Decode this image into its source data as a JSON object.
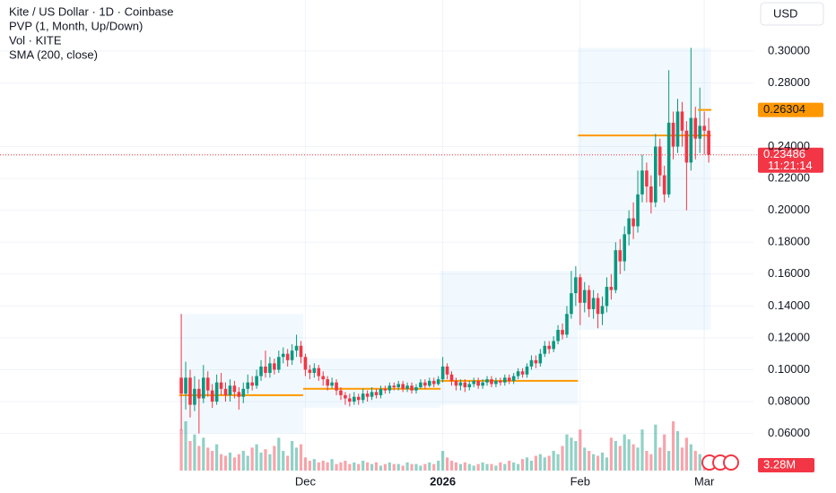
{
  "chart_data": {
    "type": "candlestick",
    "title": "Kite / US Dollar · 1D · Coinbase",
    "indicators": [
      "PVP (1, Month, Up/Down)",
      "Vol · KITE",
      "SMA (200, close)"
    ],
    "currency": "USD",
    "up_color": "#089981",
    "down_color": "#f23645",
    "x": [
      0,
      1,
      2,
      3,
      4,
      5,
      6,
      7,
      8,
      9,
      10,
      11,
      12,
      13,
      14,
      15,
      16,
      17,
      18,
      19,
      20,
      21,
      22,
      23,
      24,
      25,
      26,
      27,
      28,
      29,
      30,
      31,
      32,
      33,
      34,
      35,
      36,
      37,
      38,
      39,
      40,
      41,
      42,
      43,
      44,
      45,
      46,
      47,
      48,
      49,
      50,
      51,
      52,
      53,
      54,
      55,
      56,
      57,
      58,
      59,
      60,
      61,
      62,
      63,
      64,
      65,
      66,
      67,
      68,
      69,
      70,
      71,
      72,
      73,
      74,
      75,
      76,
      77,
      78,
      79,
      80,
      81,
      82,
      83,
      84,
      85,
      86,
      87,
      88,
      89,
      90,
      91,
      92,
      93,
      94,
      95,
      96,
      97,
      98,
      99,
      100,
      101,
      102,
      103,
      104,
      105,
      106,
      107,
      108,
      109,
      110,
      111,
      112,
      113,
      114,
      115,
      116,
      117,
      118,
      119
    ],
    "open": [
      0.095,
      0.085,
      0.095,
      0.078,
      0.088,
      0.082,
      0.095,
      0.087,
      0.08,
      0.092,
      0.088,
      0.084,
      0.09,
      0.086,
      0.083,
      0.088,
      0.092,
      0.09,
      0.096,
      0.102,
      0.098,
      0.104,
      0.1,
      0.108,
      0.11,
      0.106,
      0.112,
      0.115,
      0.108,
      0.1,
      0.098,
      0.101,
      0.096,
      0.094,
      0.09,
      0.092,
      0.087,
      0.084,
      0.082,
      0.08,
      0.083,
      0.081,
      0.085,
      0.083,
      0.086,
      0.084,
      0.088,
      0.087,
      0.09,
      0.089,
      0.091,
      0.088,
      0.09,
      0.087,
      0.089,
      0.092,
      0.09,
      0.093,
      0.091,
      0.094,
      0.102,
      0.097,
      0.093,
      0.09,
      0.092,
      0.089,
      0.091,
      0.093,
      0.09,
      0.092,
      0.094,
      0.091,
      0.093,
      0.092,
      0.095,
      0.093,
      0.096,
      0.099,
      0.097,
      0.102,
      0.106,
      0.104,
      0.11,
      0.115,
      0.113,
      0.118,
      0.125,
      0.122,
      0.135,
      0.148,
      0.158,
      0.142,
      0.15,
      0.138,
      0.145,
      0.135,
      0.14,
      0.152,
      0.15,
      0.175,
      0.168,
      0.185,
      0.195,
      0.19,
      0.21,
      0.225,
      0.215,
      0.205,
      0.24,
      0.222,
      0.21,
      0.255,
      0.24,
      0.262,
      0.25,
      0.23,
      0.258,
      0.245,
      0.253,
      0.25
    ],
    "high": [
      0.135,
      0.105,
      0.1,
      0.096,
      0.094,
      0.103,
      0.099,
      0.091,
      0.097,
      0.098,
      0.092,
      0.094,
      0.093,
      0.089,
      0.092,
      0.097,
      0.096,
      0.1,
      0.106,
      0.112,
      0.108,
      0.107,
      0.112,
      0.114,
      0.113,
      0.116,
      0.122,
      0.118,
      0.11,
      0.103,
      0.104,
      0.103,
      0.099,
      0.096,
      0.095,
      0.094,
      0.089,
      0.086,
      0.085,
      0.086,
      0.085,
      0.088,
      0.087,
      0.089,
      0.088,
      0.09,
      0.09,
      0.092,
      0.092,
      0.093,
      0.093,
      0.092,
      0.092,
      0.091,
      0.094,
      0.094,
      0.095,
      0.095,
      0.096,
      0.108,
      0.104,
      0.099,
      0.095,
      0.094,
      0.094,
      0.093,
      0.095,
      0.095,
      0.094,
      0.096,
      0.096,
      0.095,
      0.095,
      0.097,
      0.097,
      0.098,
      0.101,
      0.101,
      0.104,
      0.109,
      0.109,
      0.113,
      0.118,
      0.118,
      0.121,
      0.128,
      0.129,
      0.14,
      0.162,
      0.165,
      0.16,
      0.155,
      0.153,
      0.15,
      0.148,
      0.146,
      0.158,
      0.16,
      0.18,
      0.182,
      0.19,
      0.2,
      0.205,
      0.225,
      0.235,
      0.23,
      0.222,
      0.248,
      0.245,
      0.228,
      0.288,
      0.262,
      0.27,
      0.268,
      0.256,
      0.302,
      0.265,
      0.277,
      0.262,
      0.258
    ],
    "low": [
      0.062,
      0.075,
      0.07,
      0.074,
      0.06,
      0.079,
      0.083,
      0.076,
      0.078,
      0.084,
      0.08,
      0.08,
      0.082,
      0.075,
      0.079,
      0.085,
      0.087,
      0.088,
      0.093,
      0.095,
      0.095,
      0.097,
      0.098,
      0.104,
      0.102,
      0.103,
      0.108,
      0.104,
      0.096,
      0.094,
      0.095,
      0.093,
      0.09,
      0.087,
      0.088,
      0.084,
      0.081,
      0.078,
      0.077,
      0.078,
      0.078,
      0.079,
      0.08,
      0.081,
      0.082,
      0.082,
      0.085,
      0.085,
      0.087,
      0.087,
      0.086,
      0.086,
      0.085,
      0.085,
      0.088,
      0.088,
      0.089,
      0.089,
      0.09,
      0.092,
      0.094,
      0.09,
      0.087,
      0.087,
      0.086,
      0.087,
      0.089,
      0.088,
      0.088,
      0.09,
      0.089,
      0.089,
      0.09,
      0.09,
      0.091,
      0.091,
      0.094,
      0.095,
      0.095,
      0.1,
      0.101,
      0.102,
      0.108,
      0.11,
      0.111,
      0.116,
      0.119,
      0.12,
      0.132,
      0.14,
      0.128,
      0.136,
      0.133,
      0.132,
      0.126,
      0.128,
      0.136,
      0.144,
      0.148,
      0.16,
      0.162,
      0.178,
      0.182,
      0.186,
      0.205,
      0.205,
      0.198,
      0.202,
      0.215,
      0.205,
      0.208,
      0.232,
      0.236,
      0.24,
      0.2,
      0.225,
      0.232,
      0.236,
      0.235,
      0.23
    ],
    "close": [
      0.085,
      0.095,
      0.078,
      0.088,
      0.082,
      0.095,
      0.087,
      0.08,
      0.092,
      0.088,
      0.084,
      0.09,
      0.086,
      0.083,
      0.088,
      0.092,
      0.09,
      0.096,
      0.102,
      0.098,
      0.104,
      0.1,
      0.108,
      0.11,
      0.106,
      0.112,
      0.115,
      0.108,
      0.1,
      0.098,
      0.101,
      0.096,
      0.094,
      0.09,
      0.092,
      0.087,
      0.084,
      0.082,
      0.08,
      0.083,
      0.081,
      0.085,
      0.083,
      0.086,
      0.084,
      0.088,
      0.087,
      0.09,
      0.089,
      0.091,
      0.088,
      0.09,
      0.087,
      0.089,
      0.092,
      0.09,
      0.093,
      0.091,
      0.094,
      0.102,
      0.097,
      0.093,
      0.09,
      0.092,
      0.089,
      0.091,
      0.093,
      0.09,
      0.092,
      0.094,
      0.091,
      0.093,
      0.092,
      0.095,
      0.093,
      0.096,
      0.099,
      0.097,
      0.102,
      0.106,
      0.104,
      0.11,
      0.115,
      0.113,
      0.118,
      0.125,
      0.122,
      0.135,
      0.148,
      0.158,
      0.142,
      0.15,
      0.138,
      0.145,
      0.135,
      0.14,
      0.152,
      0.15,
      0.175,
      0.168,
      0.185,
      0.195,
      0.19,
      0.21,
      0.225,
      0.215,
      0.205,
      0.24,
      0.222,
      0.21,
      0.255,
      0.24,
      0.262,
      0.25,
      0.23,
      0.258,
      0.245,
      0.253,
      0.25,
      0.23486
    ],
    "volume": {
      "values": [
        25,
        30,
        18,
        22,
        15,
        20,
        14,
        12,
        16,
        10,
        9,
        11,
        8,
        10,
        12,
        9,
        14,
        16,
        11,
        13,
        10,
        15,
        20,
        12,
        9,
        18,
        14,
        16,
        8,
        6,
        7,
        5,
        6,
        5,
        7,
        4,
        5,
        6,
        4,
        5,
        4,
        6,
        5,
        4,
        5,
        3,
        4,
        5,
        4,
        4,
        3,
        5,
        4,
        4,
        3,
        4,
        5,
        4,
        6,
        12,
        8,
        6,
        5,
        4,
        5,
        4,
        3,
        4,
        5,
        4,
        4,
        3,
        5,
        4,
        6,
        5,
        4,
        7,
        8,
        6,
        9,
        10,
        8,
        9,
        12,
        10,
        15,
        22,
        20,
        18,
        25,
        14,
        12,
        10,
        9,
        11,
        8,
        20,
        18,
        15,
        22,
        19,
        16,
        14,
        25,
        12,
        10,
        28,
        14,
        22,
        12,
        30,
        24,
        14,
        20,
        16,
        12,
        10,
        8,
        3.28
      ],
      "last_label": "3.28M",
      "ylim": [
        0,
        60
      ]
    },
    "profiles": [
      {
        "start": 0,
        "end": 27,
        "low": 0.06,
        "high": 0.135,
        "poc": 0.084
      },
      {
        "start": 28,
        "end": 58,
        "low": 0.076,
        "high": 0.107,
        "poc": 0.088
      },
      {
        "start": 59,
        "end": 89,
        "low": 0.078,
        "high": 0.162,
        "poc": 0.093
      },
      {
        "start": 90,
        "end": 119,
        "low": 0.125,
        "high": 0.302,
        "poc": 0.247
      }
    ],
    "sma_last": 0.26304,
    "countdown": "11:21:14",
    "xlim": [
      -40.9,
      129.1
    ],
    "ylim": [
      0.0367,
      0.332
    ],
    "xticks": [
      {
        "value": 28,
        "label": "Dec"
      },
      {
        "value": 59,
        "label": "2026"
      },
      {
        "value": 90,
        "label": "Feb"
      },
      {
        "value": 118,
        "label": "Mar"
      }
    ],
    "yticks": [
      {
        "value": 0.06,
        "label": "0.06000"
      },
      {
        "value": 0.08,
        "label": "0.08000"
      },
      {
        "value": 0.1,
        "label": "0.10000"
      },
      {
        "value": 0.12,
        "label": "0.12000"
      },
      {
        "value": 0.14,
        "label": "0.14000"
      },
      {
        "value": 0.16,
        "label": "0.16000"
      },
      {
        "value": 0.18,
        "label": "0.18000"
      },
      {
        "value": 0.2,
        "label": "0.20000"
      },
      {
        "value": 0.22,
        "label": "0.22000"
      },
      {
        "value": 0.24,
        "label": "0.24000"
      },
      {
        "value": 0.28,
        "label": "0.28000"
      },
      {
        "value": 0.3,
        "label": "0.30000"
      }
    ],
    "grid": true
  }
}
